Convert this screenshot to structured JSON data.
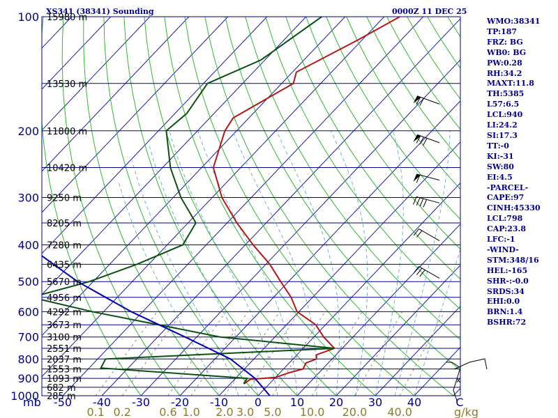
{
  "header": {
    "station": "XS341 (38341) Sounding",
    "time": "0000Z 11 DEC 25"
  },
  "colors": {
    "axis_blue": "#00008b",
    "isotherm": "#1a1aa0",
    "dry_adiabat": "#2db82d",
    "moist_adiabat": "#6fb0d0",
    "mixing_ratio": "#8a8a6a",
    "temperature": "#b01818",
    "dewpoint": "#0a5010",
    "parcel": "#0000b0",
    "hodograph": "#000000"
  },
  "indices": [
    "WMO:38341",
    "TP:187",
    "FRZ: BG",
    "WB0: BG",
    "PW:0.28",
    "RH:34.2",
    "MAXT:11.8",
    "TH:5385",
    "L57:6.5",
    "LCL:940",
    "LI:24.2",
    "SI:17.3",
    "TT:-0",
    "KI:-31",
    "SW:80",
    "EI:4.5",
    "-PARCEL-",
    "CAPE:97",
    "CINH:45330",
    "LCL:798",
    "CAP:23.8",
    "LFC:-1",
    "-WIND-",
    "STM:348/16",
    "HEL:-165",
    "SHR-:-0.0",
    "SRDS:34",
    "EHI:0.0",
    "BRN:1.4",
    "BSHR:72"
  ],
  "chart_data": {
    "type": "skew-t",
    "title": "XS341 (38341) Sounding",
    "time": "0000Z 11 DEC 25",
    "p_unit": "mb",
    "mix_unit": "g/kg",
    "p_range": [
      100,
      1000
    ],
    "t_range_at_1000mb": [
      -50,
      50
    ],
    "pressure_labels": [
      "100",
      "200",
      "300",
      "400",
      "500",
      "600",
      "700",
      "800",
      "900",
      "1000"
    ],
    "pressure_values": [
      100,
      200,
      300,
      400,
      500,
      600,
      700,
      800,
      900,
      1000
    ],
    "temp_labels": [
      "-50",
      "-40",
      "-30",
      "-20",
      "-10",
      "0",
      "10",
      "20",
      "30",
      "40",
      "C"
    ],
    "temp_values": [
      -50,
      -40,
      -30,
      -20,
      -10,
      0,
      10,
      20,
      30,
      40
    ],
    "mixing_ratio_labels": [
      "0.1",
      "0.2",
      "0.6",
      "1.0",
      "2.0",
      "3.0",
      "5.0",
      "10.0",
      "20.0",
      "40.0"
    ],
    "mixing_ratio_values": [
      0.1,
      0.2,
      0.6,
      1.0,
      2.0,
      3.0,
      5.0,
      10.0,
      20.0,
      40.0
    ],
    "height_levels": [
      {
        "p": 100,
        "label": "15980 m"
      },
      {
        "p": 150,
        "label": "13530 m"
      },
      {
        "p": 200,
        "label": "11800 m"
      },
      {
        "p": 250,
        "label": "10420 m"
      },
      {
        "p": 300,
        "label": "9250 m"
      },
      {
        "p": 350,
        "label": "8205 m"
      },
      {
        "p": 400,
        "label": "7280 m"
      },
      {
        "p": 450,
        "label": "6435 m"
      },
      {
        "p": 500,
        "label": "5670 m"
      },
      {
        "p": 550,
        "label": "4956 m"
      },
      {
        "p": 600,
        "label": "4292 m"
      },
      {
        "p": 650,
        "label": "3673 m"
      },
      {
        "p": 700,
        "label": "3100 m"
      },
      {
        "p": 750,
        "label": "2551 m"
      },
      {
        "p": 800,
        "label": "2037 m"
      },
      {
        "p": 850,
        "label": "1553 m"
      },
      {
        "p": 900,
        "label": "1093 m"
      },
      {
        "p": 950,
        "label": "682 m"
      },
      {
        "p": 1000,
        "label": "285 m"
      }
    ],
    "series": [
      {
        "name": "temperature",
        "points": [
          [
            100,
            -56
          ],
          [
            115,
            -61
          ],
          [
            140,
            -69
          ],
          [
            150,
            -67
          ],
          [
            185,
            -74
          ],
          [
            200,
            -73
          ],
          [
            250,
            -67
          ],
          [
            300,
            -57.5
          ],
          [
            350,
            -47.5
          ],
          [
            400,
            -38
          ],
          [
            450,
            -29
          ],
          [
            500,
            -22
          ],
          [
            550,
            -15.5
          ],
          [
            600,
            -10.5
          ],
          [
            650,
            -2.5
          ],
          [
            700,
            2.5
          ],
          [
            750,
            8
          ],
          [
            780,
            5
          ],
          [
            800,
            6
          ],
          [
            820,
            4.3
          ],
          [
            850,
            5
          ],
          [
            870,
            2.3
          ],
          [
            895,
            0
          ],
          [
            905,
            -6
          ],
          [
            930,
            -6.5
          ]
        ]
      },
      {
        "name": "dewpoint",
        "points": [
          [
            100,
            -76
          ],
          [
            130,
            -81
          ],
          [
            150,
            -89
          ],
          [
            180,
            -87
          ],
          [
            200,
            -88
          ],
          [
            250,
            -78
          ],
          [
            300,
            -68
          ],
          [
            350,
            -58
          ],
          [
            400,
            -56
          ],
          [
            450,
            -63
          ],
          [
            500,
            -71
          ],
          [
            550,
            -82
          ],
          [
            600,
            -63
          ],
          [
            700,
            -24
          ],
          [
            750,
            8
          ],
          [
            800,
            -48
          ],
          [
            845,
            -47
          ],
          [
            900,
            -7
          ],
          [
            930,
            -6.6
          ]
        ]
      },
      {
        "name": "parcel",
        "points": [
          [
            100,
            -158
          ],
          [
            200,
            -139
          ],
          [
            300,
            -117
          ],
          [
            400,
            -96
          ],
          [
            500,
            -74
          ],
          [
            600,
            -53
          ],
          [
            700,
            -33
          ],
          [
            800,
            -16
          ],
          [
            900,
            -5
          ],
          [
            1000,
            3
          ]
        ]
      }
    ],
    "wind_barbs": [
      {
        "p": 170,
        "dir": 290,
        "spd": 75
      },
      {
        "p": 215,
        "dir": 290,
        "spd": 85
      },
      {
        "p": 270,
        "dir": 285,
        "spd": 65
      },
      {
        "p": 310,
        "dir": 285,
        "spd": 45
      },
      {
        "p": 390,
        "dir": 300,
        "spd": 25
      },
      {
        "p": 490,
        "dir": 300,
        "spd": 35
      }
    ]
  }
}
